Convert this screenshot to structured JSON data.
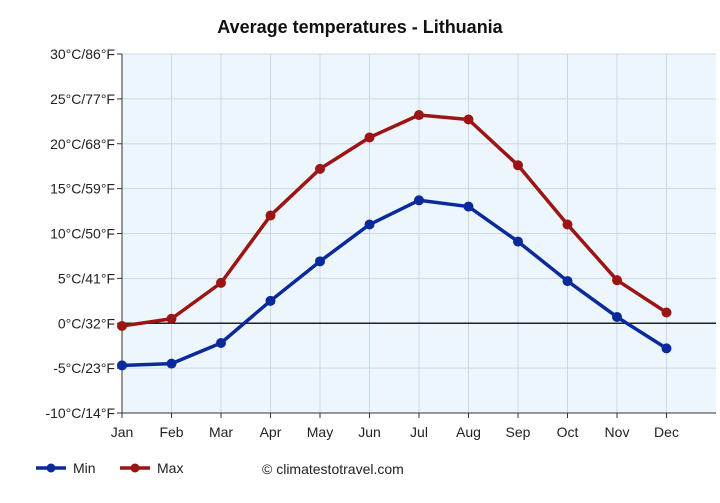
{
  "chart_data": {
    "type": "line",
    "title": "Average temperatures - Lithuania",
    "categories": [
      "Jan",
      "Feb",
      "Mar",
      "Apr",
      "May",
      "Jun",
      "Jul",
      "Aug",
      "Sep",
      "Oct",
      "Nov",
      "Dec"
    ],
    "y_ticks": [
      {
        "value": 30,
        "label": "30°C/86°F"
      },
      {
        "value": 25,
        "label": "25°C/77°F"
      },
      {
        "value": 20,
        "label": "20°C/68°F"
      },
      {
        "value": 15,
        "label": "15°C/59°F"
      },
      {
        "value": 10,
        "label": "10°C/50°F"
      },
      {
        "value": 5,
        "label": "5°C/41°F"
      },
      {
        "value": 0,
        "label": "0°C/32°F"
      },
      {
        "value": -5,
        "label": "-5°C/23°F"
      },
      {
        "value": -10,
        "label": "-10°C/14°F"
      }
    ],
    "ylim": [
      -10,
      30
    ],
    "grid": true,
    "legend_position": "bottom-left",
    "series": [
      {
        "name": "Min",
        "color": "#0a2a9c",
        "values": [
          -4.7,
          -4.5,
          -2.2,
          2.5,
          6.9,
          11.0,
          13.7,
          13.0,
          9.1,
          4.7,
          0.7,
          -2.8
        ]
      },
      {
        "name": "Max",
        "color": "#9c1414",
        "values": [
          -0.3,
          0.5,
          4.5,
          12.0,
          17.2,
          20.7,
          23.2,
          22.7,
          17.6,
          11.0,
          4.8,
          1.2
        ]
      }
    ],
    "credit": "© climatestotravel.com"
  },
  "colors": {
    "plot_background": "#eef6fd",
    "grid": "#c9d8e6",
    "zero_line": "#222222",
    "axis": "#333333"
  }
}
